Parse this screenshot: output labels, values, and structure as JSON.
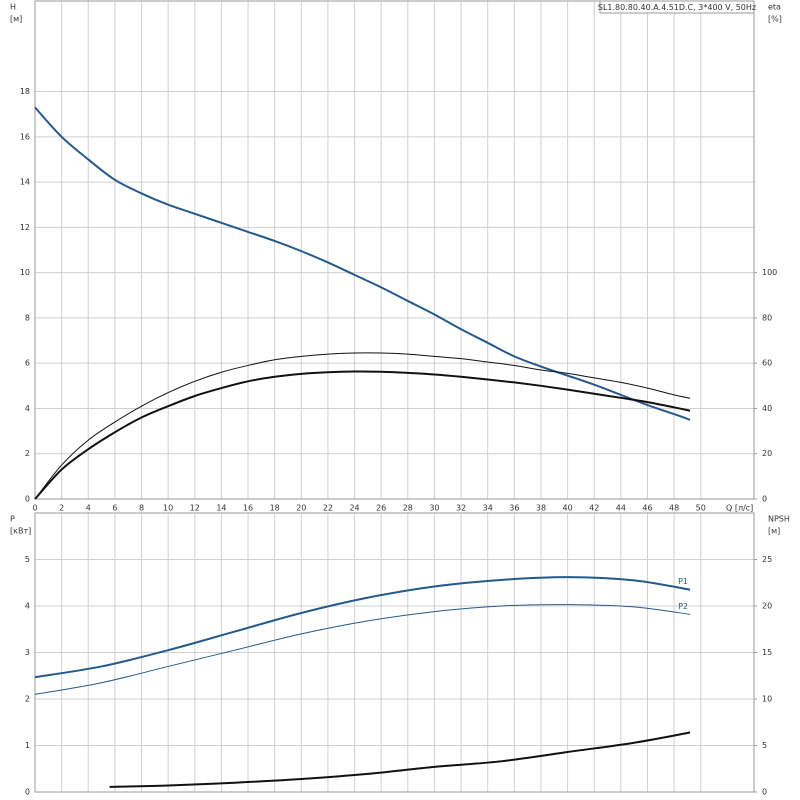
{
  "chart_data": [
    {
      "type": "line",
      "title": "SL1.80.80.40.A.4.51D.C, 3*400 V, 50Hz",
      "ylabel": "H",
      "yunit": "[м]",
      "y2label": "eta",
      "y2unit": "[%]",
      "xlabel": "Q [л/с]",
      "xlim": [
        0,
        54
      ],
      "xticks": [
        0,
        2,
        4,
        6,
        8,
        10,
        12,
        14,
        16,
        18,
        20,
        22,
        24,
        26,
        28,
        30,
        32,
        34,
        36,
        38,
        40,
        42,
        44,
        46,
        48,
        50
      ],
      "ylim": [
        0,
        22
      ],
      "yticks": [
        0,
        2,
        4,
        6,
        8,
        10,
        12,
        14,
        16,
        18
      ],
      "y2lim": [
        0,
        220
      ],
      "y2ticks": [
        0,
        20,
        40,
        60,
        80,
        100
      ],
      "grid": true,
      "series": [
        {
          "color": "#25598c",
          "line_width": 2,
          "x": [
            0,
            2,
            4,
            6,
            8,
            10,
            12,
            14,
            16,
            18,
            20,
            22,
            24,
            26,
            28,
            30,
            32,
            34,
            36,
            38,
            40,
            42,
            44,
            46,
            48,
            49.2
          ],
          "values": [
            17.3,
            16.0,
            15.0,
            14.1,
            13.5,
            13.0,
            12.6,
            12.2,
            11.8,
            11.4,
            10.95,
            10.45,
            9.9,
            9.35,
            8.75,
            8.15,
            7.5,
            6.9,
            6.3,
            5.85,
            5.45,
            5.05,
            4.6,
            4.15,
            3.75,
            3.5
          ]
        },
        {
          "color": "#111111",
          "line_width": 1,
          "axis": "y2",
          "x": [
            0,
            2,
            4,
            6,
            8,
            10,
            12,
            14,
            16,
            18,
            20,
            22,
            24,
            26,
            28,
            30,
            32,
            34,
            36,
            38,
            40,
            42,
            44,
            46,
            48,
            49.2
          ],
          "values": [
            0,
            15,
            26,
            34,
            41,
            47,
            52,
            56,
            59,
            61.5,
            63,
            64,
            64.5,
            64.5,
            64,
            63,
            62,
            60.5,
            59,
            57,
            55.5,
            53.5,
            51.5,
            49,
            46,
            44.5
          ]
        },
        {
          "color": "#111111",
          "line_width": 2,
          "axis": "y2",
          "x": [
            0,
            2,
            4,
            6,
            8,
            10,
            12,
            14,
            16,
            18,
            20,
            22,
            24,
            26,
            28,
            30,
            32,
            34,
            36,
            38,
            40,
            42,
            44,
            46,
            48,
            49.2
          ],
          "values": [
            0,
            13,
            22,
            29.5,
            36,
            41,
            45.5,
            49,
            52,
            54,
            55.3,
            56,
            56.3,
            56.2,
            55.7,
            55,
            54,
            52.8,
            51.5,
            50,
            48.3,
            46.5,
            44.7,
            42.8,
            40.5,
            39
          ]
        }
      ]
    },
    {
      "type": "line",
      "ylabel": "P",
      "yunit": "[кВт]",
      "y2label": "NPSH",
      "y2unit": "[м]",
      "xlim": [
        0,
        54
      ],
      "xticks": [
        0,
        2,
        4,
        6,
        8,
        10,
        12,
        14,
        16,
        18,
        20,
        22,
        24,
        26,
        28,
        30,
        32,
        34,
        36,
        38,
        40,
        42,
        44,
        46,
        48,
        50
      ],
      "xtick_labels": false,
      "ylim": [
        0,
        6
      ],
      "yticks": [
        0,
        1,
        2,
        3,
        4,
        5
      ],
      "y2lim": [
        0,
        30
      ],
      "y2ticks": [
        0,
        5,
        10,
        15,
        20,
        25
      ],
      "grid": true,
      "series": [
        {
          "name": "P1",
          "color": "#25598c",
          "line_width": 2,
          "x": [
            0,
            5,
            10,
            15,
            20,
            25,
            30,
            35,
            40,
            45,
            49.2
          ],
          "values": [
            2.47,
            2.7,
            3.05,
            3.45,
            3.85,
            4.18,
            4.42,
            4.56,
            4.62,
            4.55,
            4.35
          ]
        },
        {
          "name": "P2",
          "color": "#25598c",
          "line_width": 1,
          "x": [
            0,
            5,
            10,
            15,
            20,
            25,
            30,
            35,
            40,
            45,
            49.2
          ],
          "values": [
            2.1,
            2.35,
            2.7,
            3.05,
            3.4,
            3.68,
            3.88,
            4.0,
            4.03,
            3.98,
            3.82
          ]
        },
        {
          "color": "#111111",
          "line_width": 2,
          "axis": "y2",
          "x": [
            5.6,
            10,
            15,
            20,
            25,
            30,
            35,
            40,
            45,
            49.2
          ],
          "values": [
            0.55,
            0.7,
            1.0,
            1.4,
            1.95,
            2.7,
            3.3,
            4.3,
            5.3,
            6.4
          ]
        }
      ]
    }
  ]
}
